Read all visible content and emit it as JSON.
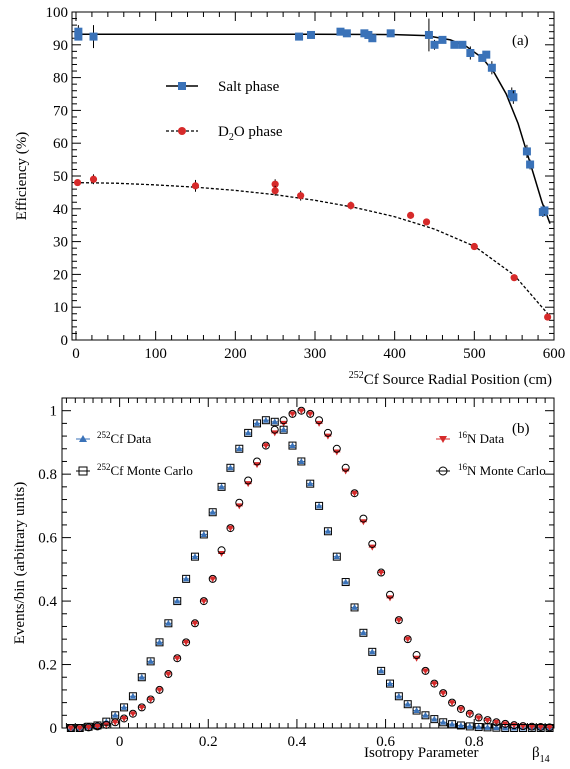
{
  "chart_data": [
    {
      "type": "scatter",
      "panel_label": "(a)",
      "xlabel_iso": "252",
      "xlabel": "Cf Source Radial Position (cm)",
      "ylabel": "Efficiency (%)",
      "xlim": [
        -5,
        600
      ],
      "ylim": [
        0,
        100
      ],
      "x_ticks": [
        "0",
        "100",
        "200",
        "300",
        "400",
        "500",
        "600"
      ],
      "y_ticks": [
        "0",
        "10",
        "20",
        "30",
        "40",
        "50",
        "60",
        "70",
        "80",
        "90",
        "100"
      ],
      "legend_placement": "upper-center",
      "series": [
        {
          "name": "Salt phase",
          "marker": "square",
          "color": "#3a72b8",
          "line": "solid",
          "points": [
            {
              "x": 3,
              "y": 94.0,
              "err": 2.0
            },
            {
              "x": 3,
              "y": 92.5,
              "err": 1.0
            },
            {
              "x": 22,
              "y": 92.5,
              "err": 3.5
            },
            {
              "x": 280,
              "y": 92.5,
              "err": 1.0
            },
            {
              "x": 295,
              "y": 93.0,
              "err": 1.0
            },
            {
              "x": 332,
              "y": 94.0,
              "err": 0.8
            },
            {
              "x": 340,
              "y": 93.5,
              "err": 0.8
            },
            {
              "x": 362,
              "y": 93.5,
              "err": 0.8
            },
            {
              "x": 367,
              "y": 93.0,
              "err": 0.8
            },
            {
              "x": 372,
              "y": 92.0,
              "err": 0.8
            },
            {
              "x": 395,
              "y": 93.5,
              "err": 0.8
            },
            {
              "x": 443,
              "y": 93.0,
              "err": 5.0
            },
            {
              "x": 450,
              "y": 90.0,
              "err": 1.5
            },
            {
              "x": 460,
              "y": 91.5,
              "err": 1.0
            },
            {
              "x": 475,
              "y": 90.0,
              "err": 1.0
            },
            {
              "x": 485,
              "y": 90.0,
              "err": 1.0
            },
            {
              "x": 495,
              "y": 87.5,
              "err": 2.0
            },
            {
              "x": 510,
              "y": 86.0,
              "err": 1.0
            },
            {
              "x": 515,
              "y": 87.0,
              "err": 1.0
            },
            {
              "x": 522,
              "y": 83.0,
              "err": 2.0
            },
            {
              "x": 547,
              "y": 75.0,
              "err": 2.0
            },
            {
              "x": 549,
              "y": 74.0,
              "err": 2.0
            },
            {
              "x": 566,
              "y": 57.5,
              "err": 2.0
            },
            {
              "x": 570,
              "y": 53.5,
              "err": 1.5
            },
            {
              "x": 586,
              "y": 39.0,
              "err": 1.5
            },
            {
              "x": 588,
              "y": 39.5,
              "err": 1.5
            }
          ],
          "fit": [
            [
              0,
              93.2
            ],
            [
              100,
              93.2
            ],
            [
              200,
              93.2
            ],
            [
              300,
              93.2
            ],
            [
              400,
              93.1
            ],
            [
              440,
              92.8
            ],
            [
              470,
              91.5
            ],
            [
              490,
              89.5
            ],
            [
              510,
              86.0
            ],
            [
              525,
              81.5
            ],
            [
              540,
              75.0
            ],
            [
              555,
              66.0
            ],
            [
              565,
              58.0
            ],
            [
              575,
              50.0
            ],
            [
              585,
              42.0
            ],
            [
              595,
              35.5
            ]
          ]
        },
        {
          "name": "D2O phase",
          "marker": "circle",
          "color": "#d62a2a",
          "line": "dashed",
          "points": [
            {
              "x": 2,
              "y": 48.0,
              "err": 0.8
            },
            {
              "x": 22,
              "y": 49.0,
              "err": 1.5
            },
            {
              "x": 150,
              "y": 47.0,
              "err": 1.8
            },
            {
              "x": 250,
              "y": 47.5,
              "err": 1.5
            },
            {
              "x": 250,
              "y": 45.5,
              "err": 1.5
            },
            {
              "x": 282,
              "y": 44.0,
              "err": 1.5
            },
            {
              "x": 345,
              "y": 41.0,
              "err": 1.2
            },
            {
              "x": 420,
              "y": 38.0,
              "err": 0.6
            },
            {
              "x": 440,
              "y": 36.0,
              "err": 0.6
            },
            {
              "x": 500,
              "y": 28.5,
              "err": 0.6
            },
            {
              "x": 550,
              "y": 19.0,
              "err": 0.6
            },
            {
              "x": 592,
              "y": 7.0,
              "err": 0.6
            }
          ],
          "fit": [
            [
              0,
              48.0
            ],
            [
              50,
              47.8
            ],
            [
              100,
              47.3
            ],
            [
              150,
              46.6
            ],
            [
              200,
              45.6
            ],
            [
              250,
              44.3
            ],
            [
              300,
              42.6
            ],
            [
              350,
              40.4
            ],
            [
              400,
              37.6
            ],
            [
              450,
              33.8
            ],
            [
              500,
              28.6
            ],
            [
              550,
              19.8
            ],
            [
              595,
              7.2
            ]
          ]
        }
      ]
    },
    {
      "type": "scatter",
      "panel_label": "(b)",
      "xlabel": "Isotropy Parameter",
      "xlabel_symbol": "β",
      "xlabel_sub": "14",
      "ylabel": "Events/bin (arbitrary units)",
      "xlim": [
        -0.13,
        0.98
      ],
      "ylim": [
        0,
        1.04
      ],
      "x_ticks": [
        "0",
        "0.2",
        "0.4",
        "0.6",
        "0.8"
      ],
      "y_ticks": [
        "0",
        "0.2",
        "0.4",
        "0.6",
        "0.8",
        "1"
      ],
      "legend_placement": "upper-left and upper-right",
      "series": [
        {
          "name_iso": "252",
          "name": "Cf Data",
          "marker": "triangle",
          "color": "#3a72b8",
          "x": [
            -0.11,
            -0.09,
            -0.07,
            -0.05,
            -0.03,
            -0.01,
            0.01,
            0.03,
            0.05,
            0.07,
            0.09,
            0.11,
            0.13,
            0.15,
            0.17,
            0.19,
            0.21,
            0.23,
            0.25,
            0.27,
            0.29,
            0.31,
            0.33,
            0.35,
            0.37,
            0.39,
            0.41,
            0.43,
            0.45,
            0.47,
            0.49,
            0.51,
            0.53,
            0.55,
            0.57,
            0.59,
            0.61,
            0.63,
            0.65,
            0.67,
            0.69,
            0.71,
            0.73,
            0.75,
            0.77,
            0.79,
            0.81,
            0.83,
            0.85,
            0.87,
            0.89,
            0.91,
            0.93,
            0.95,
            0.97
          ],
          "y": [
            0.0,
            0.0,
            0.004,
            0.008,
            0.02,
            0.04,
            0.065,
            0.1,
            0.16,
            0.21,
            0.27,
            0.33,
            0.4,
            0.47,
            0.54,
            0.61,
            0.68,
            0.76,
            0.82,
            0.88,
            0.93,
            0.96,
            0.97,
            0.965,
            0.94,
            0.89,
            0.84,
            0.77,
            0.7,
            0.62,
            0.54,
            0.46,
            0.38,
            0.3,
            0.24,
            0.18,
            0.14,
            0.1,
            0.075,
            0.055,
            0.04,
            0.028,
            0.018,
            0.012,
            0.008,
            0.005,
            0.003,
            0.002,
            0.001,
            0.0,
            0.0,
            0.0,
            0.0,
            0.0,
            0.0
          ]
        },
        {
          "name_iso": "252",
          "name": "Cf Monte Carlo",
          "marker": "open-square",
          "color": "#000000",
          "x": [
            -0.11,
            -0.09,
            -0.07,
            -0.05,
            -0.03,
            -0.01,
            0.01,
            0.03,
            0.05,
            0.07,
            0.09,
            0.11,
            0.13,
            0.15,
            0.17,
            0.19,
            0.21,
            0.23,
            0.25,
            0.27,
            0.29,
            0.31,
            0.33,
            0.35,
            0.37,
            0.39,
            0.41,
            0.43,
            0.45,
            0.47,
            0.49,
            0.51,
            0.53,
            0.55,
            0.57,
            0.59,
            0.61,
            0.63,
            0.65,
            0.67,
            0.69,
            0.71,
            0.73,
            0.75,
            0.77,
            0.79,
            0.81,
            0.83,
            0.85,
            0.87,
            0.89,
            0.91,
            0.93,
            0.95,
            0.97
          ],
          "y": [
            0.0,
            0.0,
            0.004,
            0.008,
            0.02,
            0.04,
            0.065,
            0.1,
            0.16,
            0.21,
            0.27,
            0.33,
            0.4,
            0.47,
            0.54,
            0.61,
            0.68,
            0.76,
            0.82,
            0.88,
            0.93,
            0.96,
            0.97,
            0.965,
            0.94,
            0.89,
            0.84,
            0.77,
            0.7,
            0.62,
            0.54,
            0.46,
            0.38,
            0.3,
            0.24,
            0.18,
            0.14,
            0.1,
            0.075,
            0.055,
            0.04,
            0.028,
            0.018,
            0.012,
            0.008,
            0.005,
            0.003,
            0.002,
            0.001,
            0.0,
            0.0,
            0.0,
            0.0,
            0.0,
            0.0
          ]
        },
        {
          "name_iso": "16",
          "name": "N Data",
          "marker": "inverted-triangle",
          "color": "#d62a2a",
          "x": [
            -0.11,
            -0.09,
            -0.07,
            -0.05,
            -0.03,
            -0.01,
            0.01,
            0.03,
            0.05,
            0.07,
            0.09,
            0.11,
            0.13,
            0.15,
            0.17,
            0.19,
            0.21,
            0.23,
            0.25,
            0.27,
            0.29,
            0.31,
            0.33,
            0.35,
            0.37,
            0.39,
            0.41,
            0.43,
            0.45,
            0.47,
            0.49,
            0.51,
            0.53,
            0.55,
            0.57,
            0.59,
            0.61,
            0.63,
            0.65,
            0.67,
            0.69,
            0.71,
            0.73,
            0.75,
            0.77,
            0.79,
            0.81,
            0.83,
            0.85,
            0.87,
            0.89,
            0.91,
            0.93,
            0.95,
            0.97
          ],
          "y": [
            0.0,
            0.0,
            0.002,
            0.005,
            0.01,
            0.018,
            0.03,
            0.045,
            0.065,
            0.09,
            0.12,
            0.17,
            0.22,
            0.27,
            0.33,
            0.4,
            0.47,
            0.55,
            0.63,
            0.7,
            0.77,
            0.83,
            0.89,
            0.93,
            0.96,
            0.99,
            1.0,
            0.99,
            0.96,
            0.92,
            0.87,
            0.81,
            0.74,
            0.65,
            0.57,
            0.49,
            0.41,
            0.34,
            0.28,
            0.22,
            0.18,
            0.14,
            0.11,
            0.08,
            0.06,
            0.045,
            0.032,
            0.024,
            0.018,
            0.013,
            0.009,
            0.006,
            0.004,
            0.003,
            0.002
          ]
        },
        {
          "name_iso": "16",
          "name": "N Monte Carlo",
          "marker": "open-circle",
          "color": "#000000",
          "x": [
            -0.11,
            -0.09,
            -0.07,
            -0.05,
            -0.03,
            -0.01,
            0.01,
            0.03,
            0.05,
            0.07,
            0.09,
            0.11,
            0.13,
            0.15,
            0.17,
            0.19,
            0.21,
            0.23,
            0.25,
            0.27,
            0.29,
            0.31,
            0.33,
            0.35,
            0.37,
            0.39,
            0.41,
            0.43,
            0.45,
            0.47,
            0.49,
            0.51,
            0.53,
            0.55,
            0.57,
            0.59,
            0.61,
            0.63,
            0.65,
            0.67,
            0.69,
            0.71,
            0.73,
            0.75,
            0.77,
            0.79,
            0.81,
            0.83,
            0.85,
            0.87,
            0.89,
            0.91,
            0.93,
            0.95,
            0.97
          ],
          "y": [
            0.0,
            0.0,
            0.002,
            0.005,
            0.01,
            0.018,
            0.03,
            0.045,
            0.065,
            0.09,
            0.12,
            0.17,
            0.22,
            0.27,
            0.33,
            0.4,
            0.47,
            0.56,
            0.63,
            0.71,
            0.78,
            0.84,
            0.89,
            0.94,
            0.97,
            0.99,
            1.0,
            0.99,
            0.97,
            0.93,
            0.88,
            0.82,
            0.74,
            0.66,
            0.58,
            0.49,
            0.42,
            0.34,
            0.28,
            0.23,
            0.18,
            0.14,
            0.11,
            0.08,
            0.06,
            0.045,
            0.033,
            0.025,
            0.018,
            0.013,
            0.009,
            0.006,
            0.004,
            0.003,
            0.002
          ]
        }
      ]
    }
  ]
}
